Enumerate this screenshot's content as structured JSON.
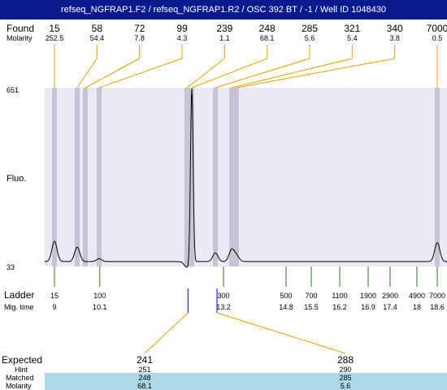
{
  "title": "refseq_NGFRAP1.F2 / refseq_NGFRAP1.R2 / OSC 392 BT  / -1 / Well ID 1048430",
  "labels": {
    "found": "Found",
    "molarity": "Molarity",
    "fluo": "Fluo.",
    "ladder": "Ladder",
    "mig_time": "Mig. time",
    "expected": "Expected",
    "hint": "Hint",
    "matched": "Matched",
    "molarity_bottom": "Molarity"
  },
  "colors": {
    "title_bg": "#0a1a8c",
    "plot_bg": "#e9e9f8",
    "peak_band": "#c4c4d4",
    "found_connector": "#e8a000",
    "ladder_tick": "#1f7a1f",
    "marker": "#0000cc",
    "highlight_row": "#add8e6"
  },
  "chart_data": {
    "type": "line",
    "y_axis": {
      "max_label": "651",
      "min_label": "33",
      "range": [
        33,
        651
      ]
    },
    "found_peaks": [
      {
        "size": "15",
        "molarity": "252.5",
        "x": 15
      },
      {
        "size": "58",
        "molarity": "54.4",
        "x": 58
      },
      {
        "size": "72",
        "molarity": "7.8",
        "x": 72
      },
      {
        "size": "99",
        "molarity": "4.3",
        "x": 99
      },
      {
        "size": "239",
        "molarity": "1.1",
        "x": 239
      },
      {
        "size": "248",
        "molarity": "68.1",
        "x": 248
      },
      {
        "size": "285",
        "molarity": "5.6",
        "x": 285
      },
      {
        "size": "321",
        "molarity": "5.4",
        "x": 321
      },
      {
        "size": "340",
        "molarity": "3.8",
        "x": 340
      },
      {
        "size": "7000",
        "molarity": "0.5",
        "x": 7000
      }
    ],
    "ladder": [
      {
        "size": "15",
        "mig_time": "9"
      },
      {
        "size": "100",
        "mig_time": "10.1"
      },
      {
        "size": "300",
        "mig_time": "13.2"
      },
      {
        "size": "500",
        "mig_time": "14.8"
      },
      {
        "size": "700",
        "mig_time": "15.5"
      },
      {
        "size": "1100",
        "mig_time": "16.2"
      },
      {
        "size": "1900",
        "mig_time": "16.9"
      },
      {
        "size": "2900",
        "mig_time": "17.4"
      },
      {
        "size": "4900",
        "mig_time": "18"
      },
      {
        "size": "7000",
        "mig_time": "18.6"
      }
    ],
    "trace": {
      "baseline": 50,
      "peaks": [
        {
          "size": 15,
          "height": 120
        },
        {
          "size": 58,
          "height": 100
        },
        {
          "size": 99,
          "height": 60
        },
        {
          "size": 239,
          "height": 30
        },
        {
          "size": 248,
          "height": 651
        },
        {
          "size": 285,
          "height": 80
        },
        {
          "size": 321,
          "height": 90
        },
        {
          "size": 340,
          "height": 70
        },
        {
          "size": 7000,
          "height": 115
        }
      ]
    },
    "expected": [
      {
        "expected": "241",
        "hint": "251",
        "matched": "248",
        "molarity": "68.1"
      },
      {
        "expected": "288",
        "hint": "290",
        "matched": "285",
        "molarity": "5.6"
      }
    ]
  }
}
